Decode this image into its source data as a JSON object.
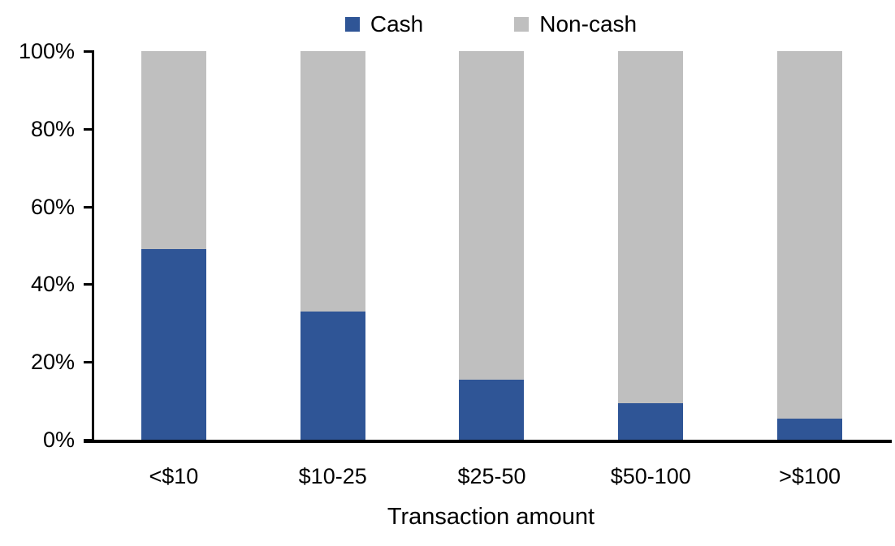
{
  "figure": {
    "background": "#FFFFFF",
    "text_color": "#000000",
    "axis_color": "#000000"
  },
  "chart_data": {
    "type": "bar",
    "stacked": true,
    "orientation": "vertical",
    "title": "",
    "xlabel": "Transaction amount",
    "ylabel": "",
    "categories": [
      "<$10",
      "$10-25",
      "$25-50",
      "$50-100",
      ">$100"
    ],
    "series": [
      {
        "name": "Cash",
        "color": "#2F5596",
        "values": [
          49,
          33,
          15.5,
          9.5,
          5.5
        ]
      },
      {
        "name": "Non-cash",
        "color": "#BFBFBF",
        "values": [
          51,
          67,
          84.5,
          90.5,
          94.5
        ]
      }
    ],
    "ylim": [
      0,
      100
    ],
    "ytick_values": [
      0,
      20,
      40,
      60,
      80,
      100
    ],
    "ytick_labels": [
      "0%",
      "20%",
      "40%",
      "60%",
      "80%",
      "100%"
    ],
    "grid": false,
    "legend_position": "top-center"
  }
}
